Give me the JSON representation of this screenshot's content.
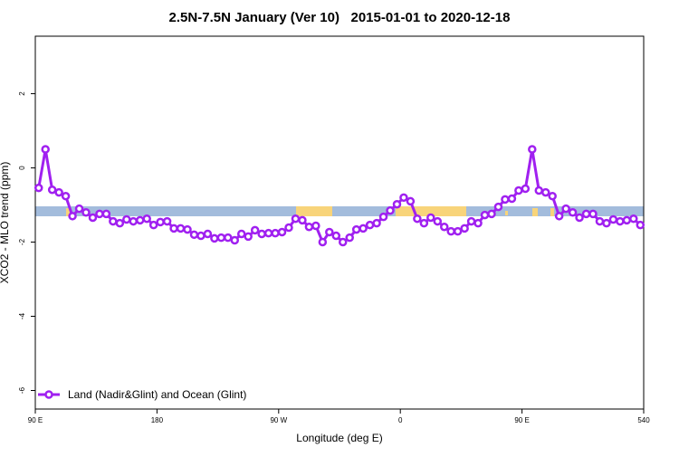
{
  "chart_data": {
    "type": "line",
    "title": "2.5N-7.5N January (Ver 10)   2015-01-01 to 2020-12-18",
    "xlabel": "Longitude (deg E)",
    "ylabel": "XCO2 - MLO trend (ppm)",
    "xlim": [
      90,
      540
    ],
    "ylim": [
      -6.5,
      3.55
    ],
    "xticks": [
      {
        "value": 90,
        "label": "90 E"
      },
      180,
      {
        "value": 270,
        "label": "90 W"
      },
      {
        "value": 360,
        "label": "0"
      },
      {
        "value": 450,
        "label": "90 E"
      },
      540
    ],
    "yticks": [
      -6,
      -4,
      -2,
      0,
      2
    ],
    "legend": "bottom-left",
    "x": [
      92.5,
      97.5,
      102.5,
      107.5,
      112.5,
      117.5,
      122.5,
      127.5,
      132.5,
      137.5,
      142.5,
      147.5,
      152.5,
      157.5,
      162.5,
      167.5,
      172.5,
      177.5,
      182.5,
      187.5,
      192.5,
      197.5,
      202.5,
      207.5,
      212.5,
      217.5,
      222.5,
      227.5,
      232.5,
      237.5,
      242.5,
      247.5,
      252.5,
      257.5,
      262.5,
      267.5,
      272.5,
      277.5,
      282.5,
      287.5,
      292.5,
      297.5,
      302.5,
      307.5,
      312.5,
      317.5,
      322.5,
      327.5,
      332.5,
      337.5,
      342.5,
      347.5,
      352.5,
      357.5,
      362.5,
      367.5,
      372.5,
      377.5,
      382.5,
      387.5,
      392.5,
      397.5,
      402.5,
      407.5,
      412.5,
      417.5,
      422.5,
      427.5,
      432.5,
      437.5,
      442.5,
      447.5,
      452.5,
      457.5,
      462.5,
      467.5,
      472.5,
      477.5,
      482.5,
      487.5,
      492.5,
      497.5,
      502.5,
      507.5,
      512.5,
      517.5,
      522.5,
      527.5,
      532.5,
      537.5
    ],
    "series": [
      {
        "name": "Land (Nadir&Glint) and Ocean (Glint)",
        "color": "#a020f0",
        "values": [
          -0.54,
          0.5,
          -0.59,
          -0.66,
          -0.76,
          -1.3,
          -1.1,
          -1.2,
          -1.34,
          -1.24,
          -1.24,
          -1.44,
          -1.49,
          -1.39,
          -1.44,
          -1.41,
          -1.37,
          -1.54,
          -1.46,
          -1.44,
          -1.63,
          -1.63,
          -1.66,
          -1.8,
          -1.83,
          -1.78,
          -1.9,
          -1.88,
          -1.88,
          -1.95,
          -1.78,
          -1.85,
          -1.68,
          -1.78,
          -1.76,
          -1.76,
          -1.73,
          -1.61,
          -1.37,
          -1.41,
          -1.59,
          -1.56,
          -2.0,
          -1.73,
          -1.83,
          -2.0,
          -1.88,
          -1.66,
          -1.63,
          -1.54,
          -1.49,
          -1.32,
          -1.15,
          -0.98,
          -0.8,
          -0.9,
          -1.37,
          -1.49,
          -1.34,
          -1.44,
          -1.59,
          -1.71,
          -1.71,
          -1.63,
          -1.44,
          -1.49,
          -1.27,
          -1.24,
          -1.05,
          -0.85,
          -0.83,
          -0.61,
          -0.56,
          0.5,
          -0.61,
          -0.66,
          -0.76,
          -1.3,
          -1.1,
          -1.2,
          -1.34,
          -1.24,
          -1.24,
          -1.44,
          -1.49,
          -1.39,
          -1.44,
          -1.41,
          -1.37,
          -1.54
        ]
      }
    ]
  }
}
